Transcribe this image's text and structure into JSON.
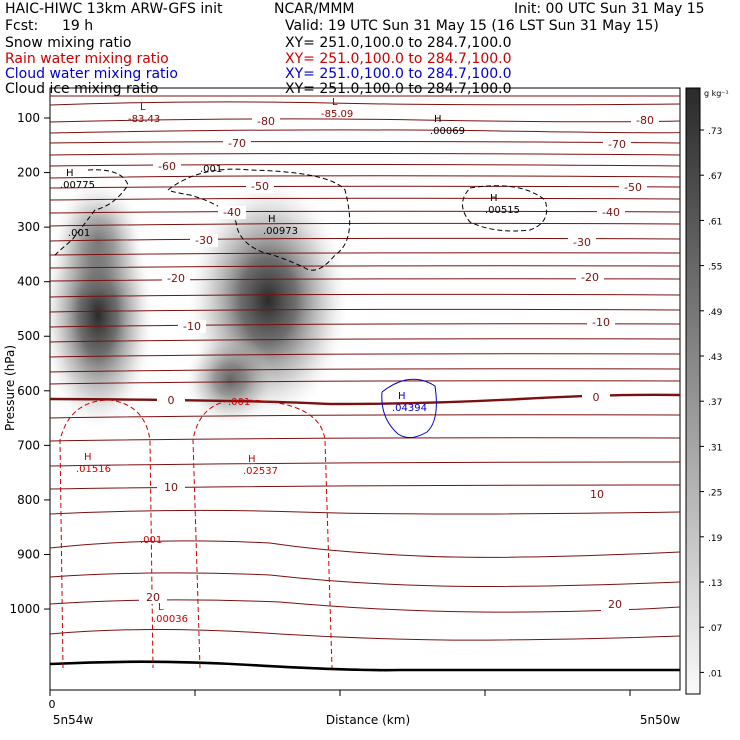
{
  "header": {
    "title": "HAIC-HIWC 13km ARW-GFS init",
    "center": "NCAR/MMM",
    "init": "Init: 00 UTC Sun 31 May 15",
    "fcst_label": "Fcst:",
    "fcst_value": "19 h",
    "valid": "Valid: 19 UTC Sun 31 May 15 (16 LST Sun 31 May 15)",
    "fields": [
      {
        "name": "Snow mixing ratio",
        "xy": "XY= 251.0,100.0 to 284.7,100.0",
        "color": "#000000"
      },
      {
        "name": "Rain water mixing ratio",
        "xy": "XY= 251.0,100.0 to 284.7,100.0",
        "color": "#cc0000"
      },
      {
        "name": "Cloud water mixing ratio",
        "xy": "XY= 251.0,100.0 to 284.7,100.0",
        "color": "#0000cc"
      },
      {
        "name": "Cloud ice mixing ratio",
        "xy": "XY= 251.0,100.0 to 284.7,100.0",
        "color": "#000000"
      }
    ]
  },
  "chart_data": {
    "type": "contour cross-section",
    "xlabel": "Distance (km)",
    "ylabel": "Pressure (hPa)",
    "ylim": [
      1070,
      50
    ],
    "yticks": [
      100,
      200,
      300,
      400,
      500,
      600,
      700,
      800,
      900,
      1000
    ],
    "x_left_label": "5n54w",
    "x_right_label": "5n50w",
    "x_origin_label": "0",
    "colorbar": {
      "unit": "g kg⁻¹",
      "ticks": [
        ".73",
        ".67",
        ".61",
        ".55",
        ".49",
        ".43",
        ".37",
        ".31",
        ".25",
        ".19",
        ".13",
        ".07",
        ".01"
      ]
    },
    "temperature_labels": [
      "-80",
      "-80",
      "-70",
      "-70",
      "-60",
      "-50",
      "-50",
      "-40",
      "-40",
      "-30",
      "-30",
      "-20",
      "-20",
      "-10",
      "-10",
      "0",
      "0",
      "10",
      "10",
      "20",
      "20"
    ],
    "extrema": [
      {
        "kind": "L",
        "value": "-83.43",
        "color": "#8b0000"
      },
      {
        "kind": "L",
        "value": "-85.09",
        "color": "#8b0000"
      },
      {
        "kind": "H",
        "value": ".00069",
        "color": "#000000"
      },
      {
        "kind": "H",
        "value": ".00775",
        "color": "#000000"
      },
      {
        "kind": "H",
        "value": ".00973",
        "color": "#000000"
      },
      {
        "kind": "H",
        "value": ".00515",
        "color": "#000000"
      },
      {
        "kind": "H",
        "value": ".04394",
        "color": "#0000cc"
      },
      {
        "kind": "H",
        "value": ".01516",
        "color": "#cc0000"
      },
      {
        "kind": "H",
        "value": ".02537",
        "color": "#cc0000"
      },
      {
        "kind": "L",
        "value": ".00036",
        "color": "#cc0000"
      }
    ],
    "contour_labels": [
      ".001",
      ".001",
      ".001",
      ".001",
      ".001"
    ]
  }
}
